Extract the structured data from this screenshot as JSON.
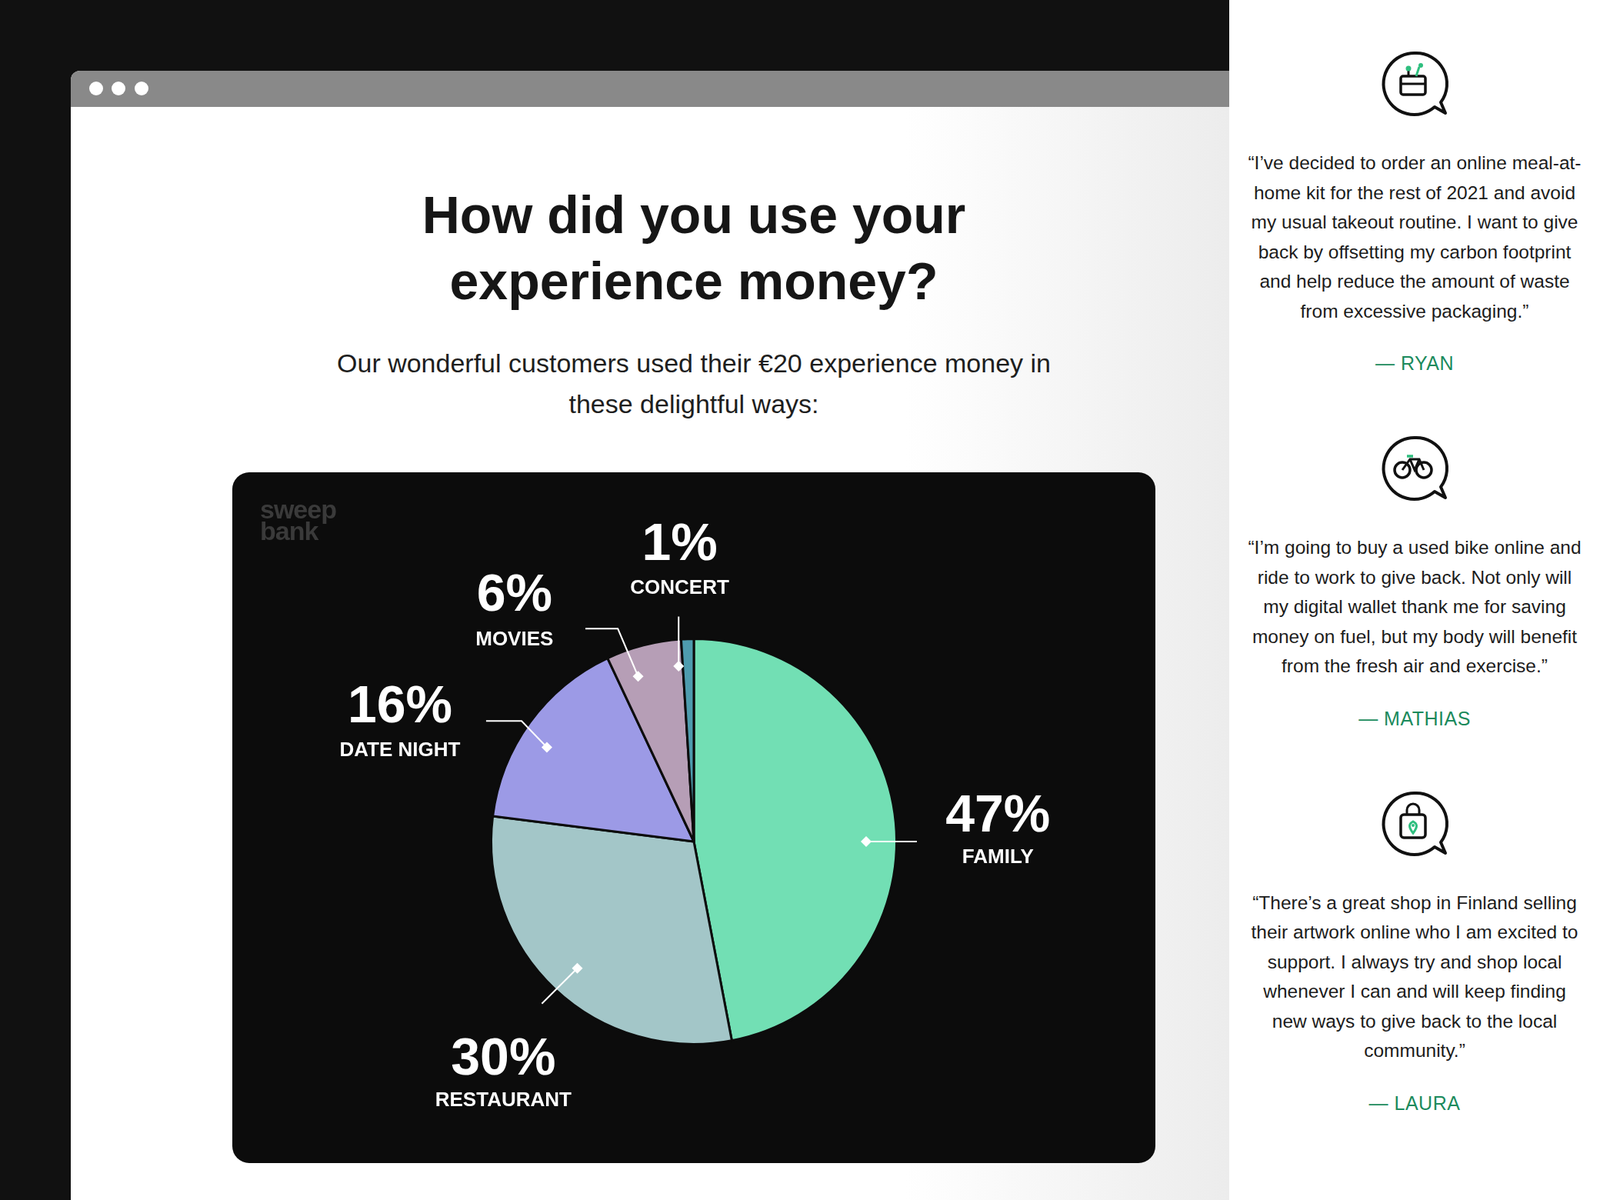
{
  "chart_data": {
    "type": "pie",
    "title": "How did you use your experience money?",
    "subtitle": "Our wonderful customers used their €20 experience money in these delightful ways:",
    "logo": "sweep bank",
    "categories": [
      "FAMILY",
      "RESTAURANT",
      "DATE NIGHT",
      "MOVIES",
      "CONCERT"
    ],
    "values": [
      47,
      30,
      16,
      6,
      1
    ],
    "value_labels": [
      "47%",
      "30%",
      "16%",
      "6%",
      "1%"
    ],
    "colors": [
      "#72dfb4",
      "#a3c6c8",
      "#9c9ae6",
      "#b69eb6",
      "#4e9cae"
    ],
    "data_labels": true
  },
  "testimonials": [
    {
      "quote": "“I’ve decided to order an online meal-at-home kit for the rest of 2021 and avoid my usual takeout routine. I want to give back by offsetting my carbon footprint and help reduce the amount of waste from excessive packaging.”",
      "author": "— RYAN"
    },
    {
      "quote": "“I’m going to buy a used bike online and ride to work to give back. Not only will my digital wallet thank me for saving money on fuel, but my body will benefit from the fresh air and exercise.”",
      "author": "— MATHIAS"
    },
    {
      "quote": "“There’s a great shop in Finland selling their artwork online who I am excited to support. I always try and shop local whenever I can and will keep finding new ways to give back to the local community.”",
      "author": "— LAURA"
    }
  ]
}
